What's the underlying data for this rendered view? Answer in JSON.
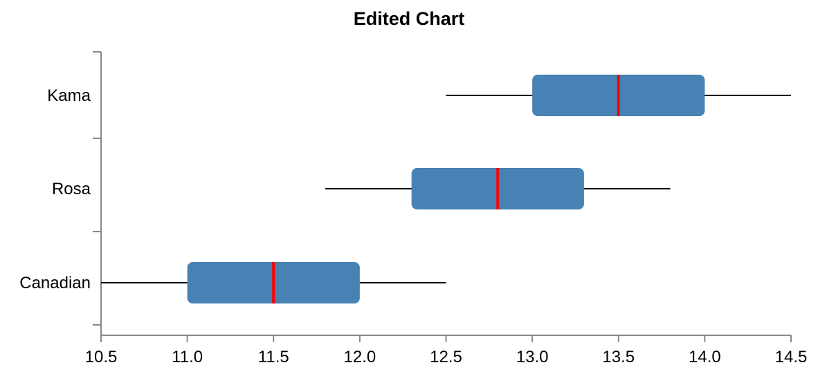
{
  "chart_data": {
    "type": "boxplot",
    "orientation": "horizontal",
    "title": "Edited Chart",
    "xlabel": "",
    "ylabel": "",
    "xlim": [
      10.5,
      14.5
    ],
    "xticks": [
      "10.5",
      "11.0",
      "11.5",
      "12.0",
      "12.5",
      "13.0",
      "13.5",
      "14.0",
      "14.5"
    ],
    "categories": [
      "Kama",
      "Rosa",
      "Canadian"
    ],
    "boxes": [
      {
        "category": "Kama",
        "min": 12.5,
        "q1": 13.0,
        "median": 13.5,
        "q3": 14.0,
        "max": 14.5
      },
      {
        "category": "Rosa",
        "min": 11.8,
        "q1": 12.3,
        "median": 12.8,
        "q3": 13.3,
        "max": 13.8
      },
      {
        "category": "Canadian",
        "min": 10.5,
        "q1": 11.0,
        "median": 11.5,
        "q3": 12.0,
        "max": 12.5
      }
    ],
    "grid": false,
    "colors": {
      "box_fill": "#4682b4",
      "median": "#ff0000",
      "whisker": "#000000",
      "axis": "#888888"
    }
  }
}
